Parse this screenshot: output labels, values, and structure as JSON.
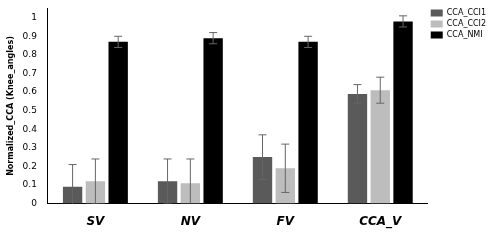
{
  "chart_data": {
    "type": "bar",
    "y_label": "Normalized_CCA (Knee_angles)",
    "categories": [
      "SV",
      "NV",
      "FV",
      "CCA_V"
    ],
    "series": [
      {
        "name": "CCA_CCI1",
        "color": "#5a5a5a",
        "values": [
          0.09,
          0.12,
          0.25,
          0.59
        ],
        "errors": [
          0.12,
          0.12,
          0.12,
          0.05
        ]
      },
      {
        "name": "CCA_CCI2",
        "color": "#bdbdbd",
        "values": [
          0.12,
          0.11,
          0.19,
          0.61
        ],
        "errors": [
          0.12,
          0.13,
          0.13,
          0.07
        ]
      },
      {
        "name": "CCA_NMI",
        "color": "#000000",
        "values": [
          0.87,
          0.89,
          0.87,
          0.98
        ],
        "errors": [
          0.03,
          0.03,
          0.03,
          0.03
        ]
      }
    ],
    "ylim": [
      0,
      1.05
    ],
    "yticks": [
      0,
      0.1,
      0.2,
      0.3,
      0.4,
      0.5,
      0.6,
      0.7,
      0.8,
      0.9,
      1
    ],
    "grid": false,
    "legend": "upper right"
  }
}
